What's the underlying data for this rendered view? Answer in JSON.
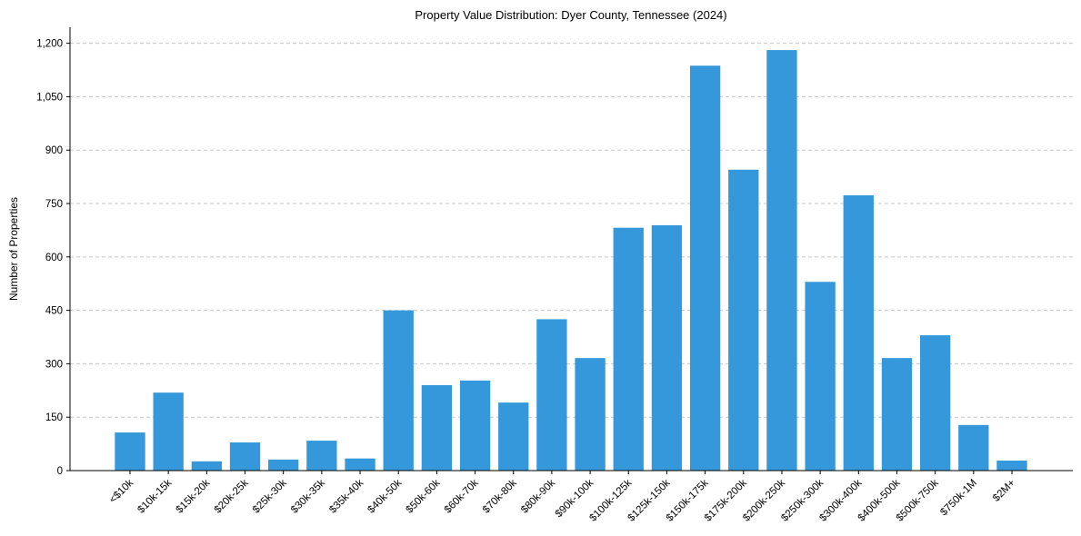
{
  "chart_data": {
    "type": "bar",
    "title": "Property Value Distribution: Dyer County, Tennessee (2024)",
    "xlabel": "",
    "ylabel": "Number of Properties",
    "ylim": [
      0,
      1245
    ],
    "yticks": [
      0,
      150,
      300,
      450,
      600,
      750,
      900,
      1050,
      1200
    ],
    "ytick_labels": [
      "0",
      "150",
      "300",
      "450",
      "600",
      "750",
      "900",
      "1,050",
      "1,200"
    ],
    "grid": "y",
    "bar_color": "#3498db",
    "categories": [
      "<$10k",
      "$10k-15k",
      "$15k-20k",
      "$20k-25k",
      "$25k-30k",
      "$30k-35k",
      "$35k-40k",
      "$40k-50k",
      "$50k-60k",
      "$60k-70k",
      "$70k-80k",
      "$80k-90k",
      "$90k-100k",
      "$100k-125k",
      "$125k-150k",
      "$150k-175k",
      "$175k-200k",
      "$200k-250k",
      "$250k-300k",
      "$300k-400k",
      "$400k-500k",
      "$500k-750k",
      "$750k-1M",
      "$2M+"
    ],
    "values": [
      107,
      219,
      26,
      79,
      31,
      84,
      34,
      450,
      240,
      253,
      191,
      425,
      316,
      682,
      689,
      1137,
      845,
      1181,
      530,
      773,
      316,
      380,
      128,
      28
    ]
  }
}
